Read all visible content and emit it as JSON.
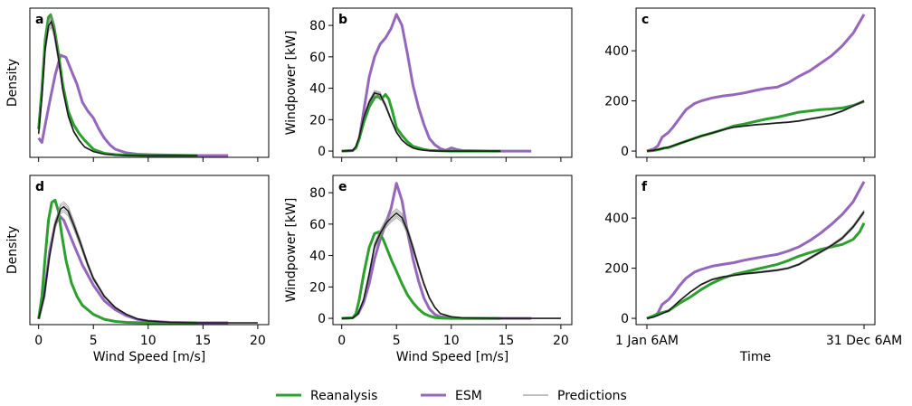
{
  "colors": {
    "reanalysis": "#2ca02c",
    "esm": "#9467bd",
    "predictions": "#000000"
  },
  "legend": [
    {
      "name": "Reanalysis",
      "color": "#2ca02c",
      "style": "thick"
    },
    {
      "name": "ESM",
      "color": "#9467bd",
      "style": "thick"
    },
    {
      "name": "Predictions",
      "color": "#7f7f7f",
      "style": "thin"
    }
  ],
  "chart_data": [
    {
      "panel": "a",
      "type": "line",
      "xlabel": "",
      "ylabel": "Density",
      "xlim": [
        -0.8,
        21
      ],
      "ylim": [
        -0.003,
        0.33
      ],
      "xticks": [
        0,
        5,
        10,
        15,
        20
      ],
      "show_xticklabels": false,
      "yticks": [],
      "series": [
        {
          "name": "ESM",
          "color": "#9467bd",
          "kind": "thick",
          "x": [
            0,
            0.3,
            0.6,
            1,
            1.5,
            2,
            2.5,
            3,
            3.5,
            4,
            4.5,
            5,
            5.5,
            6,
            6.5,
            7,
            8,
            9,
            10,
            12,
            14.5,
            17.3
          ],
          "y": [
            0.04,
            0.03,
            0.07,
            0.12,
            0.18,
            0.225,
            0.22,
            0.19,
            0.16,
            0.12,
            0.1,
            0.085,
            0.06,
            0.04,
            0.025,
            0.015,
            0.007,
            0.004,
            0.003,
            0.002,
            0.001,
            0.001
          ]
        },
        {
          "name": "Reanalysis",
          "color": "#2ca02c",
          "kind": "thick",
          "x": [
            0,
            0.3,
            0.6,
            0.9,
            1.1,
            1.4,
            1.8,
            2.2,
            2.7,
            3.2,
            3.7,
            4.2,
            5,
            6,
            7,
            8,
            10,
            12,
            14.5
          ],
          "y": [
            0.06,
            0.15,
            0.26,
            0.31,
            0.315,
            0.29,
            0.23,
            0.16,
            0.1,
            0.07,
            0.05,
            0.035,
            0.015,
            0.006,
            0.003,
            0.002,
            0.001,
            0.001,
            0.001
          ]
        },
        {
          "name": "Predictions",
          "color": "#000000",
          "kind": "thin",
          "x": [
            0,
            0.3,
            0.6,
            0.9,
            1.15,
            1.4,
            1.8,
            2.2,
            2.7,
            3.2,
            3.7,
            4.2,
            5,
            6,
            7,
            8,
            10,
            12,
            14.5
          ],
          "y": [
            0.05,
            0.13,
            0.24,
            0.29,
            0.3,
            0.28,
            0.22,
            0.15,
            0.09,
            0.055,
            0.035,
            0.02,
            0.01,
            0.004,
            0.002,
            0.001,
            0.001,
            0.001,
            0.001
          ]
        }
      ]
    },
    {
      "panel": "b",
      "type": "line",
      "xlabel": "",
      "ylabel": "Windpower [kW]",
      "xlim": [
        -0.8,
        21
      ],
      "ylim": [
        -4,
        91
      ],
      "xticks": [
        0,
        5,
        10,
        15,
        20
      ],
      "show_xticklabels": false,
      "yticks": [
        0,
        20,
        40,
        60,
        80
      ],
      "series": [
        {
          "name": "ESM",
          "color": "#9467bd",
          "kind": "thick",
          "x": [
            0,
            1,
            1.3,
            1.6,
            2,
            2.5,
            3,
            3.5,
            4,
            4.5,
            5,
            5.5,
            6,
            6.5,
            7,
            7.5,
            8,
            8.5,
            9,
            9.5,
            10,
            10.5,
            11,
            14,
            17.3
          ],
          "y": [
            0,
            0.3,
            2,
            8,
            25,
            47,
            60,
            68,
            72,
            78,
            87,
            80,
            62,
            42,
            28,
            17,
            8,
            4,
            1.5,
            0.5,
            2,
            1,
            0.3,
            0,
            0
          ]
        },
        {
          "name": "Reanalysis",
          "color": "#2ca02c",
          "kind": "thick",
          "x": [
            0,
            1,
            1.3,
            1.6,
            2,
            2.5,
            3,
            3.3,
            3.6,
            4,
            4.3,
            4.6,
            5,
            5.5,
            6,
            6.5,
            7,
            7.5,
            8,
            9,
            10,
            14.5
          ],
          "y": [
            0,
            0.3,
            2,
            8,
            18,
            28,
            34,
            35,
            33,
            36,
            33,
            26,
            15,
            10,
            6,
            3,
            2,
            1,
            0.5,
            0.2,
            0,
            0
          ]
        },
        {
          "name": "Predictions",
          "color": "#000000",
          "kind": "thin",
          "x": [
            0,
            1,
            1.3,
            1.6,
            2,
            2.5,
            3,
            3.5,
            4,
            4.5,
            5,
            5.5,
            6,
            6.5,
            7,
            7.5,
            8,
            9,
            10,
            14.5
          ],
          "y": [
            0,
            0.3,
            3,
            9,
            21,
            31,
            37,
            36,
            29,
            20,
            12,
            7,
            4,
            2,
            1,
            0.5,
            0.2,
            0,
            0,
            0
          ]
        }
      ]
    },
    {
      "panel": "c",
      "type": "line",
      "xlabel": "",
      "ylabel": "",
      "xlim": [
        -0.05,
        1.05
      ],
      "ylim": [
        -25,
        570
      ],
      "xticks": [
        0,
        1
      ],
      "show_xticklabels": false,
      "yticks": [
        0,
        200,
        400
      ],
      "series": [
        {
          "name": "ESM",
          "color": "#9467bd",
          "kind": "thick",
          "x": [
            0,
            0.03,
            0.05,
            0.07,
            0.08,
            0.1,
            0.12,
            0.15,
            0.18,
            0.22,
            0.25,
            0.3,
            0.35,
            0.4,
            0.45,
            0.5,
            0.55,
            0.6,
            0.62,
            0.65,
            0.7,
            0.75,
            0.8,
            0.85,
            0.9,
            0.95,
            1.0
          ],
          "y": [
            0,
            8,
            20,
            55,
            62,
            75,
            95,
            130,
            165,
            190,
            200,
            212,
            220,
            225,
            232,
            242,
            250,
            255,
            262,
            272,
            298,
            320,
            350,
            380,
            420,
            470,
            545
          ]
        },
        {
          "name": "Reanalysis",
          "color": "#2ca02c",
          "kind": "thick",
          "x": [
            0,
            0.03,
            0.05,
            0.08,
            0.1,
            0.12,
            0.15,
            0.2,
            0.25,
            0.3,
            0.35,
            0.4,
            0.45,
            0.5,
            0.55,
            0.6,
            0.65,
            0.7,
            0.75,
            0.8,
            0.85,
            0.9,
            0.95,
            1.0
          ],
          "y": [
            0,
            2,
            5,
            12,
            14,
            20,
            30,
            45,
            60,
            72,
            85,
            100,
            108,
            118,
            128,
            135,
            145,
            155,
            160,
            165,
            168,
            172,
            182,
            198
          ]
        },
        {
          "name": "Predictions",
          "color": "#000000",
          "kind": "thin",
          "x": [
            0,
            0.03,
            0.06,
            0.1,
            0.15,
            0.2,
            0.25,
            0.3,
            0.35,
            0.4,
            0.45,
            0.5,
            0.55,
            0.6,
            0.65,
            0.7,
            0.75,
            0.8,
            0.85,
            0.9,
            0.95,
            1.0
          ],
          "y": [
            0,
            3,
            8,
            16,
            30,
            45,
            60,
            72,
            85,
            95,
            100,
            105,
            108,
            112,
            115,
            120,
            128,
            135,
            145,
            160,
            180,
            200
          ]
        }
      ]
    },
    {
      "panel": "d",
      "type": "line",
      "xlabel": "Wind Speed [m/s]",
      "ylabel": "Density",
      "xlim": [
        -0.8,
        21
      ],
      "ylim": [
        -0.003,
        0.33
      ],
      "xticks": [
        0,
        5,
        10,
        15,
        20
      ],
      "show_xticklabels": true,
      "yticks": [],
      "series": [
        {
          "name": "ESM",
          "color": "#9467bd",
          "kind": "thick",
          "x": [
            0,
            0.5,
            1,
            1.5,
            1.9,
            2.3,
            2.8,
            3.3,
            4,
            5,
            6,
            7,
            8,
            9,
            10,
            12,
            14.5,
            17.3
          ],
          "y": [
            0.01,
            0.06,
            0.16,
            0.22,
            0.24,
            0.23,
            0.2,
            0.17,
            0.13,
            0.085,
            0.05,
            0.03,
            0.017,
            0.009,
            0.005,
            0.002,
            0.001,
            0.001
          ]
        },
        {
          "name": "Reanalysis",
          "color": "#2ca02c",
          "kind": "thick",
          "x": [
            0,
            0.3,
            0.6,
            0.9,
            1.2,
            1.5,
            1.8,
            2.1,
            2.5,
            3,
            3.5,
            4,
            5,
            6,
            7,
            8,
            10,
            12,
            14.5
          ],
          "y": [
            0.01,
            0.06,
            0.15,
            0.23,
            0.27,
            0.275,
            0.25,
            0.2,
            0.14,
            0.09,
            0.06,
            0.04,
            0.02,
            0.009,
            0.004,
            0.002,
            0.001,
            0.001,
            0.001
          ]
        },
        {
          "name": "Predictions",
          "color": "#000000",
          "kind": "thin",
          "x": [
            0,
            0.5,
            1,
            1.5,
            2,
            2.3,
            2.7,
            3.2,
            3.8,
            4.5,
            5,
            6,
            7,
            8,
            9,
            10,
            12,
            14.5,
            17.3,
            20
          ],
          "y": [
            0.01,
            0.06,
            0.15,
            0.22,
            0.255,
            0.26,
            0.25,
            0.22,
            0.18,
            0.13,
            0.1,
            0.06,
            0.035,
            0.02,
            0.01,
            0.005,
            0.002,
            0.001,
            0.001,
            0.001
          ]
        }
      ]
    },
    {
      "panel": "e",
      "type": "line",
      "xlabel": "Wind Speed [m/s]",
      "ylabel": "Windpower [kW]",
      "xlim": [
        -0.8,
        21
      ],
      "ylim": [
        -4,
        91
      ],
      "xticks": [
        0,
        5,
        10,
        15,
        20
      ],
      "show_xticklabels": true,
      "yticks": [
        0,
        20,
        40,
        60,
        80
      ],
      "series": [
        {
          "name": "ESM",
          "color": "#9467bd",
          "kind": "thick",
          "x": [
            0,
            1,
            1.5,
            2,
            2.5,
            3,
            3.5,
            4,
            4.5,
            5,
            5.5,
            6,
            6.5,
            7,
            7.5,
            8,
            8.5,
            9,
            10,
            11,
            14,
            17.3
          ],
          "y": [
            0,
            0.3,
            3,
            10,
            22,
            38,
            50,
            60,
            70,
            86,
            75,
            55,
            38,
            24,
            13,
            6,
            2.5,
            1,
            0.3,
            0,
            0,
            0
          ]
        },
        {
          "name": "Reanalysis",
          "color": "#2ca02c",
          "kind": "thick",
          "x": [
            0,
            1,
            1.3,
            1.6,
            2,
            2.5,
            3,
            3.4,
            3.8,
            4.2,
            4.6,
            5,
            5.5,
            6,
            6.5,
            7,
            7.5,
            8,
            8.5,
            9,
            10,
            14.5
          ],
          "y": [
            0,
            0.3,
            3,
            12,
            28,
            45,
            54,
            55,
            50,
            43,
            36,
            30,
            22,
            15,
            10,
            6,
            3,
            1.5,
            0.5,
            0.2,
            0,
            0
          ]
        },
        {
          "name": "Predictions",
          "color": "#000000",
          "kind": "thin",
          "x": [
            0,
            1,
            1.5,
            2,
            2.5,
            3,
            3.5,
            4,
            4.5,
            5,
            5.5,
            6,
            6.5,
            7,
            7.5,
            8,
            8.5,
            9,
            10,
            11,
            14.5,
            20
          ],
          "y": [
            0,
            0.2,
            3,
            12,
            28,
            46,
            54,
            60,
            64,
            67,
            64,
            56,
            45,
            33,
            22,
            13,
            7,
            3,
            1,
            0.3,
            0,
            0
          ]
        }
      ]
    },
    {
      "panel": "f",
      "type": "line",
      "xlabel": "Time",
      "ylabel": "",
      "xlim": [
        -0.05,
        1.05
      ],
      "ylim": [
        -25,
        570
      ],
      "xticks": [
        0,
        1
      ],
      "show_xticklabels": true,
      "yticks": [
        0,
        200,
        400
      ],
      "xticklabels": [
        "1 Jan 6AM",
        "31 Dec 6AM"
      ],
      "series": [
        {
          "name": "ESM",
          "color": "#9467bd",
          "kind": "thick",
          "x": [
            0,
            0.03,
            0.05,
            0.07,
            0.08,
            0.1,
            0.12,
            0.15,
            0.18,
            0.22,
            0.25,
            0.3,
            0.35,
            0.4,
            0.45,
            0.5,
            0.55,
            0.6,
            0.65,
            0.7,
            0.75,
            0.8,
            0.85,
            0.9,
            0.95,
            1.0
          ],
          "y": [
            0,
            8,
            20,
            55,
            62,
            75,
            95,
            130,
            160,
            185,
            195,
            208,
            215,
            222,
            232,
            240,
            248,
            255,
            268,
            285,
            310,
            340,
            375,
            415,
            465,
            545
          ]
        },
        {
          "name": "Reanalysis",
          "color": "#2ca02c",
          "kind": "thick",
          "x": [
            0,
            0.03,
            0.05,
            0.08,
            0.1,
            0.15,
            0.2,
            0.25,
            0.3,
            0.35,
            0.4,
            0.45,
            0.5,
            0.55,
            0.6,
            0.65,
            0.7,
            0.75,
            0.8,
            0.85,
            0.9,
            0.95,
            0.98,
            1.0
          ],
          "y": [
            0,
            10,
            18,
            25,
            30,
            60,
            85,
            115,
            140,
            160,
            175,
            185,
            195,
            205,
            215,
            230,
            248,
            262,
            275,
            285,
            295,
            315,
            345,
            380
          ]
        },
        {
          "name": "Predictions",
          "color": "#000000",
          "kind": "thin",
          "x": [
            0,
            0.03,
            0.06,
            0.1,
            0.15,
            0.2,
            0.25,
            0.3,
            0.35,
            0.4,
            0.45,
            0.5,
            0.55,
            0.6,
            0.65,
            0.7,
            0.75,
            0.8,
            0.85,
            0.9,
            0.95,
            1.0
          ],
          "y": [
            0,
            5,
            15,
            30,
            70,
            105,
            135,
            155,
            165,
            172,
            178,
            182,
            187,
            192,
            200,
            215,
            240,
            265,
            290,
            320,
            365,
            425
          ]
        }
      ]
    }
  ]
}
